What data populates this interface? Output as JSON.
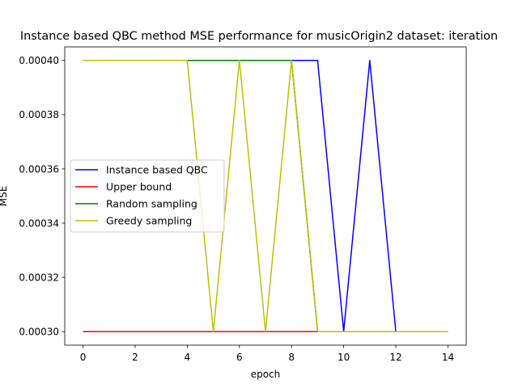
{
  "chart_data": {
    "type": "line",
    "title": "Instance based QBC method MSE performance for musicOrigin2 dataset: iteration",
    "xlabel": "epoch",
    "ylabel": "MSE",
    "xlim": [
      -0.7,
      14.7
    ],
    "ylim": [
      0.000295,
      0.000405
    ],
    "x_ticks": [
      0,
      2,
      4,
      6,
      8,
      10,
      12,
      14
    ],
    "y_ticks": [
      0.0003,
      0.00032,
      0.00034,
      0.00036,
      0.00038,
      0.0004
    ],
    "y_tick_labels": [
      "0.00030",
      "0.00032",
      "0.00034",
      "0.00036",
      "0.00038",
      "0.00040"
    ],
    "grid": false,
    "legend_position": "center-left",
    "x": [
      0,
      1,
      2,
      3,
      4,
      5,
      6,
      7,
      8,
      9,
      10,
      11,
      12,
      13,
      14
    ],
    "series": [
      {
        "name": "Instance based QBC",
        "color": "#0000ff",
        "values": [
          0.0004,
          0.0004,
          0.0004,
          0.0004,
          0.0004,
          0.0004,
          0.0004,
          0.0004,
          0.0004,
          0.0004,
          0.0003,
          0.0004,
          0.0003,
          0.0003,
          0.0003
        ]
      },
      {
        "name": "Upper bound",
        "color": "#ff0000",
        "values": [
          0.0003,
          0.0003,
          0.0003,
          0.0003,
          0.0003,
          0.0003,
          0.0003,
          0.0003,
          0.0003,
          0.0003,
          0.0003,
          0.0003,
          0.0003,
          0.0003,
          0.0003
        ]
      },
      {
        "name": "Random sampling",
        "color": "#008000",
        "values": [
          0.0004,
          0.0004,
          0.0004,
          0.0004,
          0.0004,
          0.0004,
          0.0004,
          0.0004,
          0.0004,
          0.0003,
          0.0003,
          0.0003,
          0.0003,
          0.0003,
          0.0003
        ]
      },
      {
        "name": "Greedy sampling",
        "color": "#bfbf00",
        "values": [
          0.0004,
          0.0004,
          0.0004,
          0.0004,
          0.0004,
          0.0003,
          0.0004,
          0.0003,
          0.0004,
          0.0003,
          0.0003,
          0.0003,
          0.0003,
          0.0003,
          0.0003
        ]
      }
    ]
  }
}
